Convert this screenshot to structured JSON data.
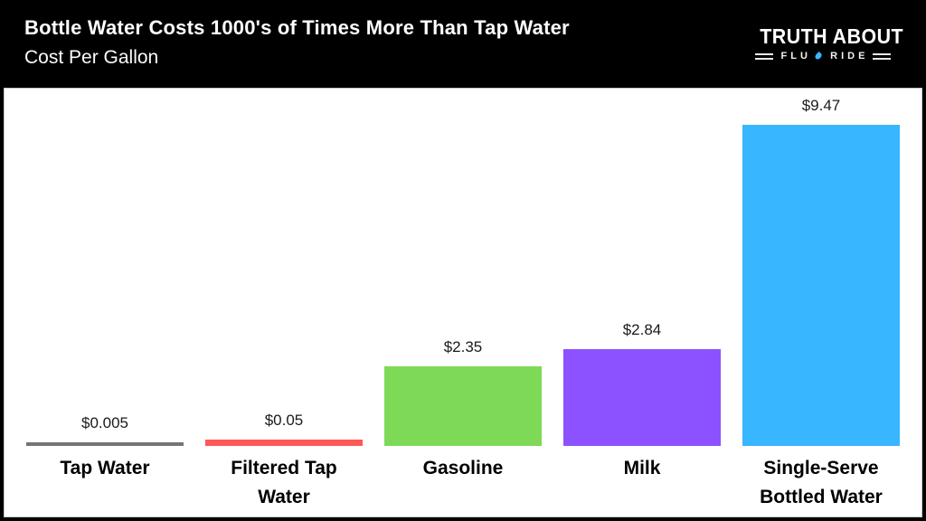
{
  "header": {
    "title": "Bottle Water Costs 1000's of Times More Than Tap Water",
    "subtitle": "Cost Per Gallon",
    "logo": {
      "line1": "TRUTH ABOUT",
      "word_left": "FLU",
      "word_right": "RIDE",
      "drop_icon": "water-drop",
      "drop_color": "#38b6ff"
    }
  },
  "chart_data": {
    "type": "bar",
    "title": "Bottle Water Costs 1000's of Times More Than Tap Water",
    "subtitle": "Cost Per Gallon",
    "categories": [
      "Tap Water",
      "Filtered Tap Water",
      "Gasoline",
      "Milk",
      "Single-Serve Bottled Water"
    ],
    "values": [
      0.005,
      0.05,
      2.35,
      2.84,
      9.47
    ],
    "value_labels": [
      "$0.005",
      "$0.05",
      "$2.35",
      "$2.84",
      "$9.47"
    ],
    "bar_colors": [
      "#757575",
      "#ff5757",
      "#7ed957",
      "#8c52ff",
      "#38b6ff"
    ],
    "ylim": [
      0,
      10
    ],
    "grid": false,
    "legend": false,
    "axis_lines": false,
    "plot_background": "#ffffff",
    "frame_color": "#000000",
    "value_label_position": "above-bar",
    "category_label_position": "below-bar"
  }
}
